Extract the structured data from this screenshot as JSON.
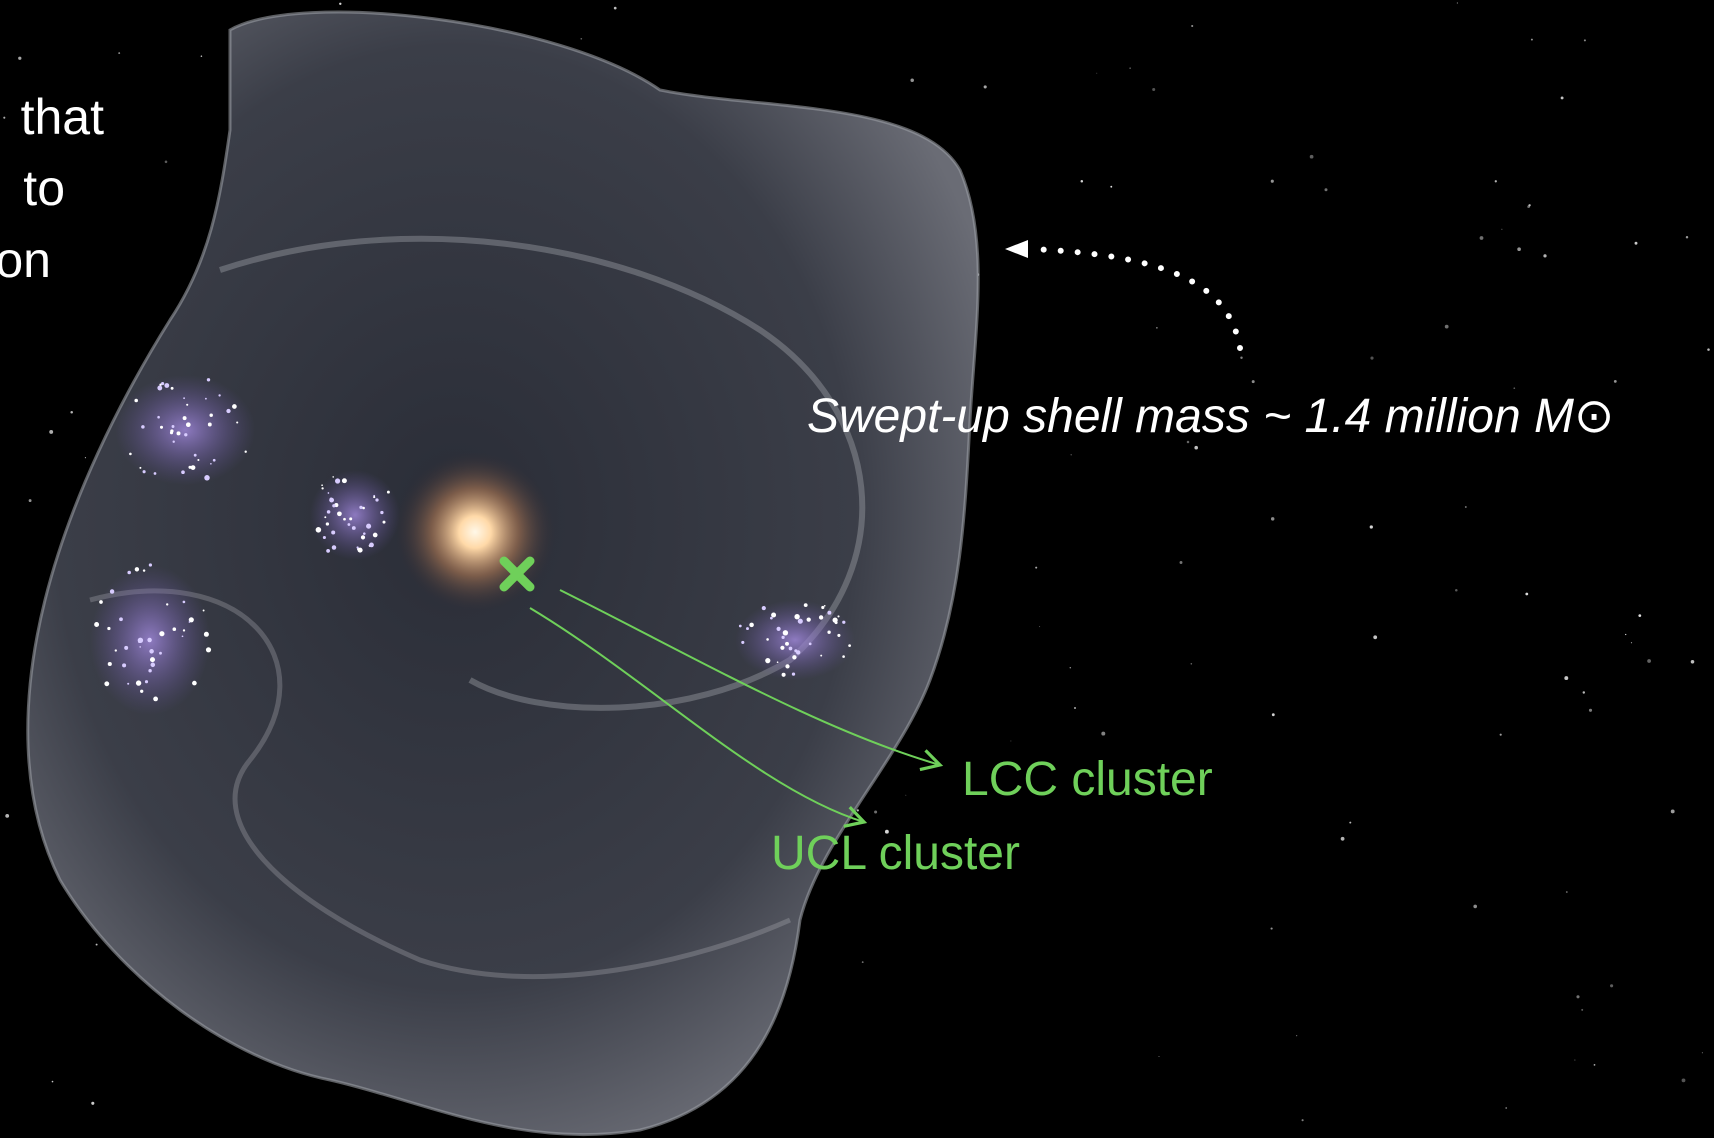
{
  "left_text": [
    "that",
    "to",
    "on"
  ],
  "annotations": {
    "shell_mass": "Swept-up shell mass ~ 1.4 million M⊙",
    "lcc": "LCC cluster",
    "ucl": "UCL cluster"
  }
}
